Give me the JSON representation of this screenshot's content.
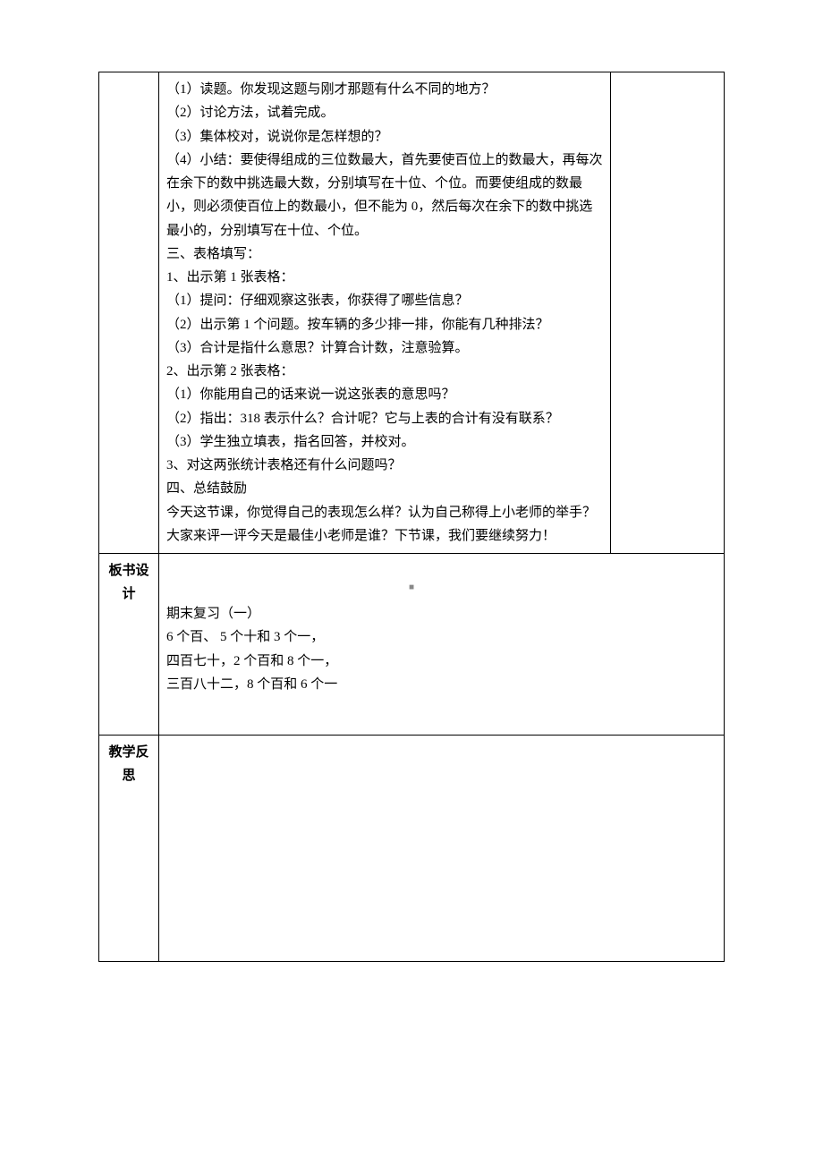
{
  "row1": {
    "lines": [
      "（1）读题。你发现这题与刚才那题有什么不同的地方？",
      "（2）讨论方法，试着完成。",
      "（3）集体校对，说说你是怎样想的？",
      "（4）小结：要使得组成的三位数最大，首先要使百位上的数最大，再每次在余下的数中挑选最大数，分别填写在十位、个位。而要使组成的数最小，则必须使百位上的数最小，但不能为 0，然后每次在余下的数中挑选最小的，分别填写在十位、个位。",
      "三、表格填写：",
      "1、出示第 1 张表格：",
      "（1）提问：仔细观察这张表，你获得了哪些信息？",
      "（2）出示第 1 个问题。按车辆的多少排一排，你能有几种排法？",
      "（3）合计是指什么意思？计算合计数，注意验算。",
      "2、出示第 2 张表格：",
      "（1）你能用自己的话来说一说这张表的意思吗？",
      "（2）指出：318 表示什么？合计呢？它与上表的合计有没有联系？",
      "（3）学生独立填表，指名回答，并校对。",
      "3、对这两张统计表格还有什么问题吗？",
      "四、总结鼓励",
      "今天这节课，你觉得自己的表现怎么样？认为自己称得上小老师的举手？大家来评一评今天是最佳小老师是谁？下节课，我们要继续努力！"
    ]
  },
  "row2": {
    "label": "板书设计",
    "lines": [
      "期末复习（一）",
      "6 个百、   5 个十和 3 个一，",
      "四百七十，2 个百和 8 个一，",
      "三百八十二，8 个百和 6 个一"
    ]
  },
  "row3": {
    "label": "教学反思"
  },
  "footer_mark": "■"
}
